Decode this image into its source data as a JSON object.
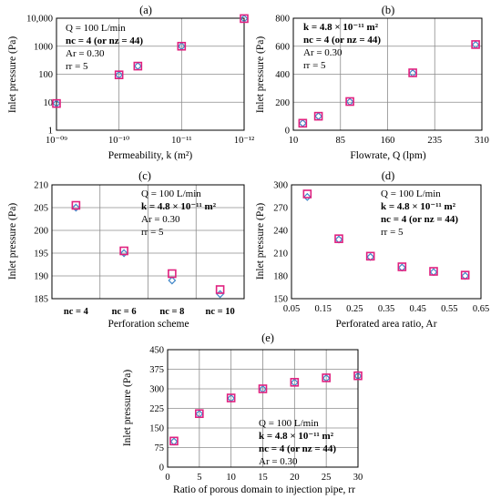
{
  "colors": {
    "series_1": "#e0217f",
    "series_2": "#3f86c8"
  },
  "chart_data": [
    {
      "id": "a",
      "panel_label": "(a)",
      "type": "scatter",
      "xlabel": "Permeability, k (m²)",
      "ylabel": "Inlet pressure (Pa)",
      "xscale": "log-reversed",
      "yscale": "log",
      "xlim": [
        1e-09,
        1e-12
      ],
      "ylim": [
        1,
        10000
      ],
      "xticks": [
        1e-09,
        1e-10,
        1e-11,
        1e-12
      ],
      "xtick_labels": [
        "10⁻⁰⁹",
        "10⁻¹⁰",
        "10⁻¹¹",
        "10⁻¹²"
      ],
      "yticks": [
        1,
        10,
        100,
        1000,
        10000
      ],
      "ytick_labels": [
        "1",
        "10",
        "100",
        "1000",
        "10,000"
      ],
      "grid": true,
      "annotations": [
        "Q = 100 L/min",
        "nc = 4 (or nz = 44)",
        "Ar = 0.30",
        "rr = 5"
      ],
      "series": [
        {
          "marker": "square",
          "color": "#e0217f",
          "x": [
            1e-09,
            1e-10,
            5e-11,
            1e-11,
            1e-12
          ],
          "y": [
            9,
            95,
            195,
            1000,
            9700
          ]
        },
        {
          "marker": "diamond",
          "color": "#3f86c8",
          "x": [
            1e-09,
            1e-10,
            5e-11,
            1e-11,
            1e-12
          ],
          "y": [
            9,
            95,
            195,
            1000,
            9700
          ]
        }
      ]
    },
    {
      "id": "b",
      "panel_label": "(b)",
      "type": "scatter",
      "xlabel": "Flowrate, Q (lpm)",
      "ylabel": "Inlet pressure (Pa)",
      "xscale": "linear",
      "yscale": "linear",
      "xlim": [
        10,
        310
      ],
      "ylim": [
        0,
        800
      ],
      "xticks": [
        10,
        85,
        160,
        235,
        310
      ],
      "xtick_labels": [
        "10",
        "85",
        "160",
        "235",
        "310"
      ],
      "yticks": [
        0,
        200,
        400,
        600,
        800
      ],
      "ytick_labels": [
        "0",
        "200",
        "400",
        "600",
        "800"
      ],
      "grid": true,
      "annotations": [
        "k = 4.8 × 10⁻¹¹ m²",
        "nc = 4 (or nz = 44)",
        "Ar = 0.30",
        "rr = 5"
      ],
      "series": [
        {
          "marker": "square",
          "color": "#e0217f",
          "x": [
            25,
            50,
            100,
            200,
            300
          ],
          "y": [
            50,
            100,
            205,
            410,
            612
          ]
        },
        {
          "marker": "diamond",
          "color": "#3f86c8",
          "x": [
            25,
            50,
            100,
            200,
            300
          ],
          "y": [
            50,
            100,
            203,
            408,
            610
          ]
        }
      ]
    },
    {
      "id": "c",
      "panel_label": "(c)",
      "type": "scatter",
      "xlabel": "Perforation scheme",
      "ylabel": "Inlet pressure (Pa)",
      "xscale": "categorical",
      "yscale": "linear",
      "categories": [
        "nc = 4",
        "nc = 6",
        "nc = 8",
        "nc = 10"
      ],
      "ylim": [
        185,
        210
      ],
      "yticks": [
        185,
        190,
        195,
        200,
        205,
        210
      ],
      "ytick_labels": [
        "185",
        "190",
        "195",
        "200",
        "205",
        "210"
      ],
      "grid": true,
      "annotations": [
        "Q = 100 L/min",
        "k = 4.8 × 10⁻¹¹ m²",
        "Ar = 0.30",
        "rr = 5"
      ],
      "series": [
        {
          "marker": "square",
          "color": "#e0217f",
          "values": [
            205.5,
            195.5,
            190.5,
            187.0
          ]
        },
        {
          "marker": "diamond",
          "color": "#3f86c8",
          "values": [
            205.0,
            195.0,
            189.0,
            186.0
          ]
        }
      ]
    },
    {
      "id": "d",
      "panel_label": "(d)",
      "type": "scatter",
      "xlabel": "Perforated area ratio, Ar",
      "ylabel": "Inlet pressure (Pa)",
      "xscale": "linear",
      "yscale": "linear",
      "xlim": [
        0.05,
        0.65
      ],
      "ylim": [
        150,
        300
      ],
      "xticks": [
        0.05,
        0.15,
        0.25,
        0.35,
        0.45,
        0.55,
        0.65
      ],
      "xtick_labels": [
        "0.05",
        "0.15",
        "0.25",
        "0.35",
        "0.45",
        "0.55",
        "0.65"
      ],
      "yticks": [
        150,
        180,
        210,
        240,
        270,
        300
      ],
      "ytick_labels": [
        "150",
        "180",
        "210",
        "240",
        "270",
        "300"
      ],
      "grid": false,
      "annotations": [
        "Q = 100 L/min",
        "k = 4.8 × 10⁻¹¹ m²",
        "nc = 4 (or nz = 44)",
        "rr = 5"
      ],
      "series": [
        {
          "marker": "square",
          "color": "#e0217f",
          "x": [
            0.1,
            0.2,
            0.3,
            0.4,
            0.5,
            0.6
          ],
          "y": [
            288,
            229,
            206,
            192,
            186,
            181
          ]
        },
        {
          "marker": "diamond",
          "color": "#3f86c8",
          "x": [
            0.1,
            0.2,
            0.3,
            0.4,
            0.5,
            0.6
          ],
          "y": [
            284,
            228,
            205,
            191,
            185,
            180
          ]
        }
      ]
    },
    {
      "id": "e",
      "panel_label": "(e)",
      "type": "scatter",
      "xlabel": "Ratio of porous domain to injection pipe, rr",
      "ylabel": "Inlet pressure (Pa)",
      "xscale": "linear",
      "yscale": "linear",
      "xlim": [
        0,
        30
      ],
      "ylim": [
        0,
        450
      ],
      "xticks": [
        0,
        5,
        10,
        15,
        20,
        25,
        30
      ],
      "xtick_labels": [
        "0",
        "5",
        "10",
        "15",
        "20",
        "25",
        "30"
      ],
      "yticks": [
        0,
        75,
        150,
        225,
        300,
        375,
        450
      ],
      "ytick_labels": [
        "0",
        "75",
        "150",
        "225",
        "300",
        "375",
        "450"
      ],
      "grid": true,
      "annotations": [
        "Q = 100 L/min",
        "k = 4.8 × 10⁻¹¹ m²",
        "nc = 4 (or nz = 44)",
        "Ar = 0.30"
      ],
      "series": [
        {
          "marker": "square",
          "color": "#e0217f",
          "x": [
            1,
            5,
            10,
            15,
            20,
            25,
            30
          ],
          "y": [
            100,
            205,
            265,
            300,
            325,
            342,
            350
          ]
        },
        {
          "marker": "diamond",
          "color": "#3f86c8",
          "x": [
            1,
            5,
            10,
            15,
            20,
            25,
            30
          ],
          "y": [
            98,
            204,
            264,
            299,
            324,
            341,
            349
          ]
        }
      ]
    }
  ]
}
